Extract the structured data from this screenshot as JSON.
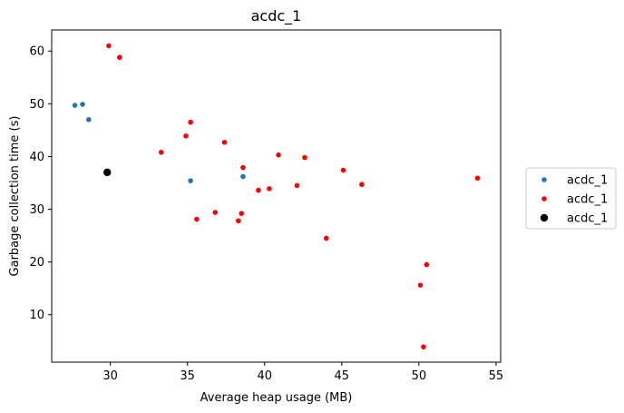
{
  "chart_data": {
    "type": "scatter",
    "title": "acdc_1",
    "xlabel": "Average heap usage (MB)",
    "ylabel": "Garbage collection time (s)",
    "xlim": [
      26.2,
      55.3
    ],
    "ylim": [
      1.0,
      64.0
    ],
    "xticks": [
      30,
      35,
      40,
      45,
      50,
      55
    ],
    "yticks": [
      10,
      20,
      30,
      40,
      50,
      60
    ],
    "grid": false,
    "legend_position": "right",
    "series": [
      {
        "name": "acdc_1",
        "color": "#1f77b4",
        "points": [
          [
            27.7,
            49.7
          ],
          [
            28.2,
            49.9
          ],
          [
            28.6,
            47.0
          ],
          [
            35.2,
            35.4
          ],
          [
            38.6,
            36.2
          ]
        ]
      },
      {
        "name": "acdc_1",
        "color": "#ff0000",
        "points": [
          [
            29.9,
            61.0
          ],
          [
            30.6,
            58.8
          ],
          [
            33.3,
            40.8
          ],
          [
            34.9,
            43.9
          ],
          [
            35.2,
            46.5
          ],
          [
            35.6,
            28.1
          ],
          [
            36.8,
            29.4
          ],
          [
            37.4,
            42.7
          ],
          [
            38.3,
            27.8
          ],
          [
            38.5,
            29.2
          ],
          [
            38.6,
            37.9
          ],
          [
            39.6,
            33.6
          ],
          [
            40.3,
            33.9
          ],
          [
            40.9,
            40.3
          ],
          [
            42.1,
            34.5
          ],
          [
            42.6,
            39.8
          ],
          [
            44.0,
            24.5
          ],
          [
            45.1,
            37.4
          ],
          [
            46.3,
            34.7
          ],
          [
            50.1,
            15.6
          ],
          [
            50.3,
            3.9
          ],
          [
            50.5,
            19.5
          ],
          [
            53.8,
            35.9
          ]
        ]
      },
      {
        "name": "acdc_1",
        "color": "#000000",
        "points": [
          [
            29.8,
            37.0
          ]
        ]
      }
    ]
  }
}
